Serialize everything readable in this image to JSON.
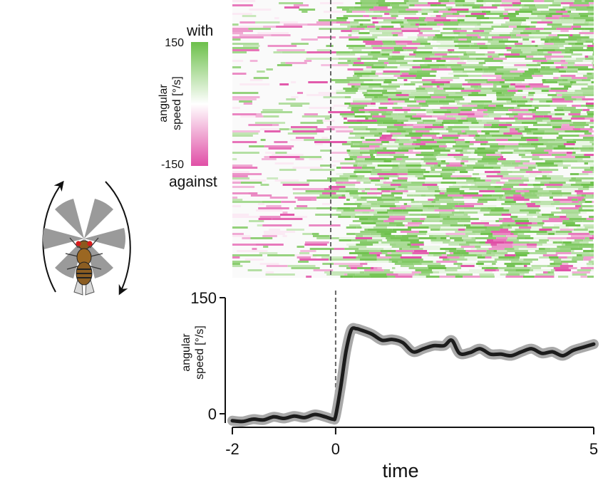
{
  "colors": {
    "with": "#6cc04a",
    "against": "#e04fa6",
    "mid": "#ffffff",
    "trace": "#1c1c1c",
    "trace_band": "#a9a9a9",
    "stimulus_line": "#666666",
    "arena_sector": "#9a9a9a"
  },
  "icons": {
    "rotation_arrows": "circular-arrows-icon",
    "stimulus": "grating-sectors-icon",
    "fly": "fruit-fly-icon"
  },
  "colorbar": {
    "label_top": "with",
    "label_bottom": "against",
    "tick_max": "150",
    "tick_min": "-150",
    "title_line1": "angular",
    "title_line2": "speed [°/s]"
  },
  "chart_data": [
    {
      "type": "heatmap",
      "description_of_axes": "rows = individual trials, columns = time",
      "x_range": [
        -2,
        5
      ],
      "value_range": [
        -150,
        150
      ],
      "stimulus_onset": 0
    },
    {
      "type": "line",
      "xlabel": "time",
      "ylabel_line1": "angular",
      "ylabel_line2": "speed [°/s]",
      "xlim": [
        -2,
        5
      ],
      "ylim": [
        -12,
        150
      ],
      "xticks": [
        "-2",
        "0",
        "5"
      ],
      "yticks": [
        "0",
        "150"
      ],
      "stimulus_onset": 0,
      "x": [
        -2.0,
        -1.8,
        -1.6,
        -1.4,
        -1.2,
        -1.0,
        -0.8,
        -0.6,
        -0.4,
        -0.2,
        -0.05,
        0.0,
        0.1,
        0.2,
        0.3,
        0.4,
        0.5,
        0.7,
        0.9,
        1.1,
        1.3,
        1.5,
        1.7,
        1.9,
        2.1,
        2.25,
        2.4,
        2.6,
        2.8,
        3.0,
        3.2,
        3.4,
        3.6,
        3.8,
        4.0,
        4.2,
        4.4,
        4.6,
        4.8,
        5.0
      ],
      "y": [
        -9,
        -10,
        -7,
        -8,
        -4,
        -6,
        -3,
        -5,
        -1,
        -4,
        -7,
        -3,
        35,
        80,
        108,
        110,
        108,
        103,
        95,
        96,
        92,
        80,
        84,
        88,
        88,
        95,
        78,
        79,
        84,
        77,
        77,
        75,
        80,
        84,
        78,
        80,
        75,
        82,
        86,
        90
      ],
      "band_halfwidth": 6
    }
  ]
}
